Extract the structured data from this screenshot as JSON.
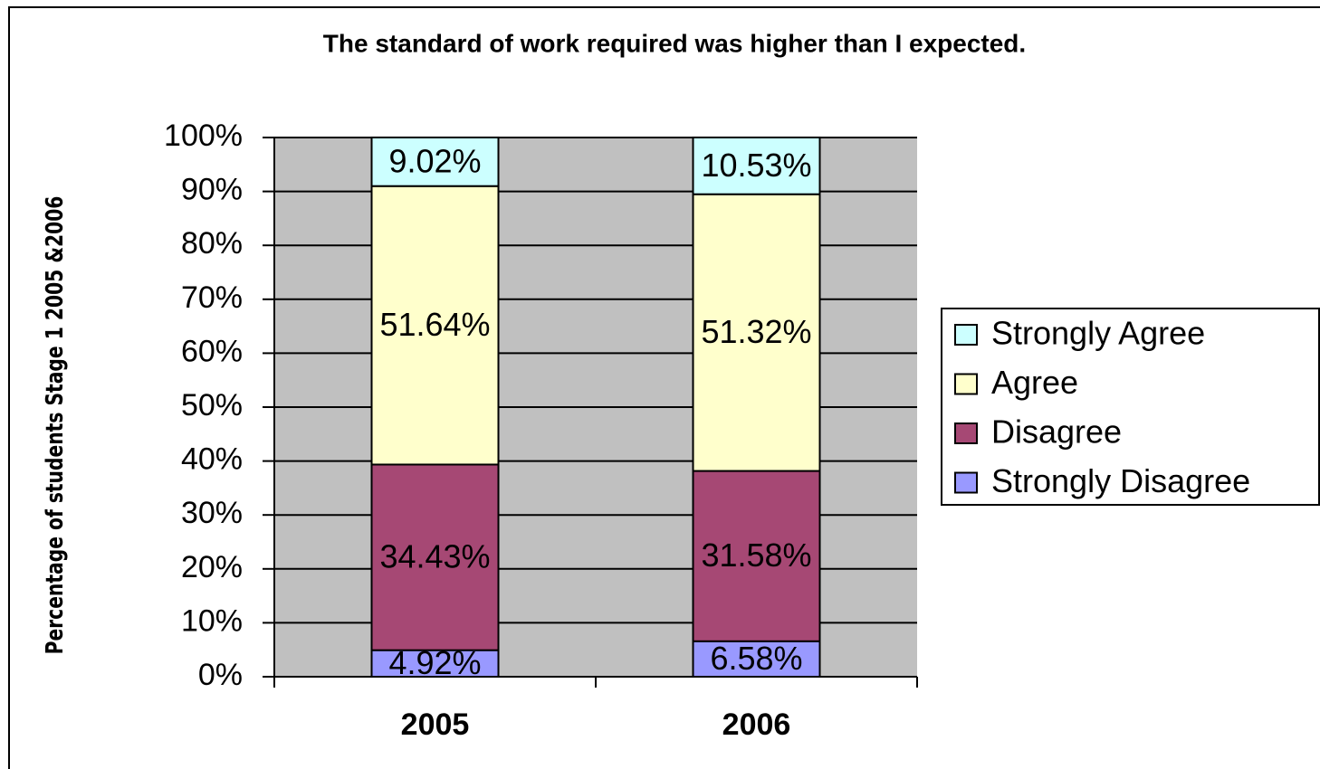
{
  "chart_data": {
    "type": "stacked_bar",
    "title": "The standard of work required was higher than I expected.",
    "y_label": "Percentage of students Stage 1 2005 &2006",
    "categories": [
      "2005",
      "2006"
    ],
    "series": [
      {
        "name": "Strongly Disagree",
        "color": "#9999ff",
        "values": [
          4.92,
          6.58
        ],
        "value_labels": [
          "4.92%",
          "6.58%"
        ]
      },
      {
        "name": "Disagree",
        "color": "#a64874",
        "values": [
          34.43,
          31.58
        ],
        "value_labels": [
          "34.43%",
          "31.58%"
        ]
      },
      {
        "name": "Agree",
        "color": "#ffffcc",
        "values": [
          51.64,
          51.32
        ],
        "value_labels": [
          "51.64%",
          "51.32%"
        ]
      },
      {
        "name": "Strongly Agree",
        "color": "#ccffff",
        "values": [
          9.02,
          10.53
        ],
        "value_labels": [
          "9.02%",
          "10.53%"
        ]
      }
    ],
    "ylim": [
      0,
      100
    ],
    "yticks": [
      {
        "value": 0,
        "label": "0%"
      },
      {
        "value": 10,
        "label": "10%"
      },
      {
        "value": 20,
        "label": "20%"
      },
      {
        "value": 30,
        "label": "30%"
      },
      {
        "value": 40,
        "label": "40%"
      },
      {
        "value": 50,
        "label": "50%"
      },
      {
        "value": 60,
        "label": "60%"
      },
      {
        "value": 70,
        "label": "70%"
      },
      {
        "value": 80,
        "label": "80%"
      },
      {
        "value": 90,
        "label": "90%"
      },
      {
        "value": 100,
        "label": "100%"
      }
    ],
    "grid": true,
    "legend": "right"
  }
}
